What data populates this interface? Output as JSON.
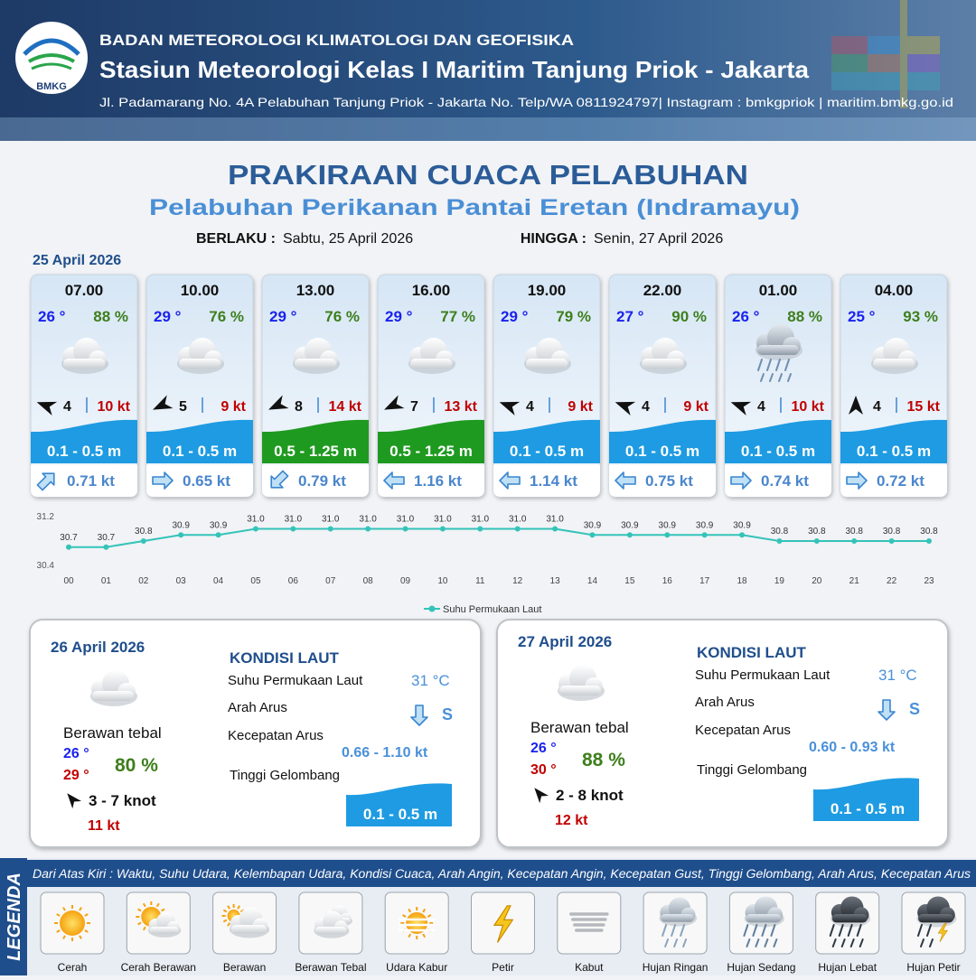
{
  "header": {
    "logo": "BMKG",
    "agency": "BADAN METEOROLOGI KLIMATOLOGI DAN GEOFISIKA",
    "station": "Stasiun Meteorologi Kelas I Maritim Tanjung Priok - Jakarta",
    "address": "Jl. Padamarang No. 4A Pelabuhan Tanjung Priok - Jakarta No. Telp/WA 0811924797| Instagram : bmkgpriok | maritim.bmkg.go.id"
  },
  "title": "PRAKIRAAN CUACA PELABUHAN",
  "subtitle": "Pelabuhan Perikanan Pantai Eretan (Indramayu)",
  "validity": {
    "from_label": "BERLAKU :",
    "from": "Sabtu, 25 April 2026",
    "to_label": "HINGGA :",
    "to": "Senin, 27 April 2026"
  },
  "forecast": {
    "date": "25 April 2026",
    "slots": [
      {
        "time": "07.00",
        "temp": "26 °",
        "humidity": "88 %",
        "wind": "4",
        "gust": "10 kt",
        "wave": "0.1 - 0.5 m",
        "current": "0.71 kt"
      },
      {
        "time": "10.00",
        "temp": "29 °",
        "humidity": "76 %",
        "wind": "5",
        "gust": "9 kt",
        "wave": "0.1 - 0.5 m",
        "current": "0.65 kt"
      },
      {
        "time": "13.00",
        "temp": "29 °",
        "humidity": "76 %",
        "wind": "8",
        "gust": "14 kt",
        "wave": "0.5 - 1.25 m",
        "current": "0.79 kt"
      },
      {
        "time": "16.00",
        "temp": "29 °",
        "humidity": "77 %",
        "wind": "7",
        "gust": "13 kt",
        "wave": "0.5 - 1.25 m",
        "current": "1.16 kt"
      },
      {
        "time": "19.00",
        "temp": "29 °",
        "humidity": "79 %",
        "wind": "4",
        "gust": "9 kt",
        "wave": "0.1 - 0.5 m",
        "current": "1.14 kt"
      },
      {
        "time": "22.00",
        "temp": "27 °",
        "humidity": "90 %",
        "wind": "4",
        "gust": "9 kt",
        "wave": "0.1 - 0.5 m",
        "current": "0.75 kt"
      },
      {
        "time": "01.00",
        "temp": "26 °",
        "humidity": "88 %",
        "wind": "4",
        "gust": "10 kt",
        "wave": "0.1 - 0.5 m",
        "current": "0.74 kt"
      },
      {
        "time": "04.00",
        "temp": "25 °",
        "humidity": "93 %",
        "wind": "4",
        "gust": "15 kt",
        "wave": "0.1 - 0.5 m",
        "current": "0.72 kt"
      }
    ]
  },
  "chart_data": {
    "type": "line",
    "categories": [
      "00",
      "01",
      "02",
      "03",
      "04",
      "05",
      "06",
      "07",
      "08",
      "09",
      "10",
      "11",
      "12",
      "13",
      "14",
      "15",
      "16",
      "17",
      "18",
      "19",
      "20",
      "21",
      "22",
      "23"
    ],
    "series": [
      {
        "name": "Suhu Permukaan Laut",
        "color": "#34c3b9",
        "values": [
          30.7,
          30.7,
          30.8,
          30.9,
          30.9,
          31.0,
          31.0,
          31.0,
          31.0,
          31.0,
          31.0,
          31.0,
          31.0,
          31.0,
          30.9,
          30.9,
          30.9,
          30.9,
          30.9,
          30.8,
          30.8,
          30.8,
          30.8,
          30.8
        ],
        "value_labels": [
          "30.7",
          "30.7",
          "30.8",
          "30.9",
          "30.9",
          "31.0",
          "31.0",
          "31.0",
          "31.0",
          "31.0",
          "31.0",
          "31.0",
          "31.0",
          "31.0",
          "30.9",
          "30.9",
          "30.9",
          "30.9",
          "30.9",
          "30.8",
          "30.8",
          "30.8",
          "30.8",
          "30.8"
        ]
      }
    ],
    "ylim": [
      30.4,
      31.2
    ],
    "yticks": [
      30.4,
      31.2
    ],
    "grid": false,
    "legend": "bottom"
  },
  "days": [
    {
      "date": "26 April 2026",
      "weather": "Berawan tebal",
      "temp_min": "26 °",
      "temp_max": "29 °",
      "humidity": "80 %",
      "wind": "3  - 7 knot",
      "gust": "11 kt",
      "sea_title": "KONDISI LAUT",
      "sst_label": "Suhu Permukaan Laut",
      "sst": "31 °C",
      "dir_label": "Arah Arus",
      "dir": "S",
      "speed_label": "Kecepatan Arus",
      "speed": "0.66  - 1.10 kt",
      "wave_label": "Tinggi Gelombang",
      "wave": "0.1 - 0.5 m"
    },
    {
      "date": "27 April 2026",
      "weather": "Berawan tebal",
      "temp_min": "26 °",
      "temp_max": "30 °",
      "humidity": "88 %",
      "wind": "2  - 8 knot",
      "gust": "12 kt",
      "sea_title": "KONDISI LAUT",
      "sst_label": "Suhu Permukaan Laut",
      "sst": "31 °C",
      "dir_label": "Arah Arus",
      "dir": "S",
      "speed_label": "Kecepatan Arus",
      "speed": "0.60  - 0.93 kt",
      "wave_label": "Tinggi Gelombang",
      "wave": "0.1 - 0.5 m"
    }
  ],
  "legend": {
    "title": "LEGENDA",
    "note": "Dari Atas Kiri : Waktu, Suhu Udara, Kelembapan Udara, Kondisi Cuaca, Arah Angin, Kecepatan Angin, Kecepatan Gust, Tinggi Gelombang, Arah Arus, Kecepatan Arus",
    "items": [
      "Cerah",
      "Cerah Berawan",
      "Berawan",
      "Berawan Tebal",
      "Udara Kabur",
      "Petir",
      "Kabut",
      "Hujan Ringan",
      "Hujan Sedang",
      "Hujan Lebat",
      "Hujan Petir"
    ]
  }
}
